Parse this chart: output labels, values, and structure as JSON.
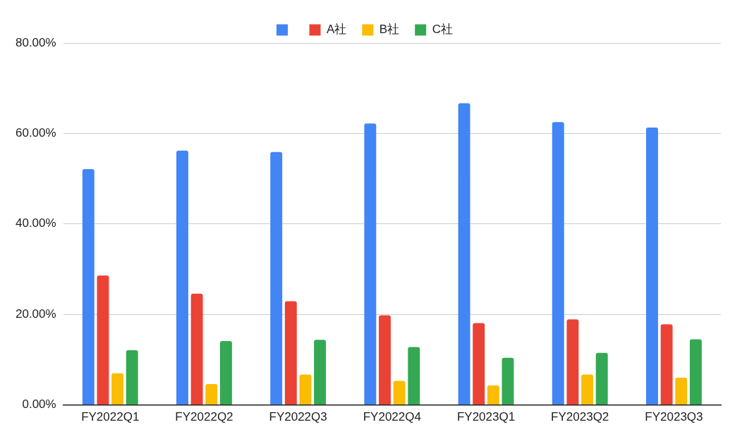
{
  "chart_data": {
    "type": "bar",
    "categories": [
      "FY2022Q1",
      "FY2022Q2",
      "FY2022Q3",
      "FY2022Q4",
      "FY2023Q1",
      "FY2023Q2",
      "FY2023Q3"
    ],
    "series": [
      {
        "color": "#4285f4",
        "values": [
          52.1,
          56.2,
          55.9,
          62.2,
          66.7,
          62.5,
          61.3
        ]
      },
      {
        "name": "A社",
        "color": "#ea4335",
        "values": [
          28.6,
          24.6,
          22.9,
          19.8,
          18.1,
          18.9,
          17.8
        ]
      },
      {
        "name": "B社",
        "color": "#fbbc04",
        "values": [
          7.0,
          4.6,
          6.7,
          5.3,
          4.3,
          6.7,
          6.0
        ]
      },
      {
        "name": "C社",
        "color": "#34a853",
        "values": [
          12.1,
          14.1,
          14.4,
          12.8,
          10.4,
          11.5,
          14.5
        ]
      }
    ],
    "ylim": [
      0,
      80
    ],
    "yticks": [
      {
        "value": 0,
        "label": "0.00%"
      },
      {
        "value": 20,
        "label": "20.00%"
      },
      {
        "value": 40,
        "label": "40.00%"
      },
      {
        "value": 60,
        "label": "60.00%"
      },
      {
        "value": 80,
        "label": "80.00%"
      }
    ],
    "grid": "y",
    "legend": "top"
  }
}
